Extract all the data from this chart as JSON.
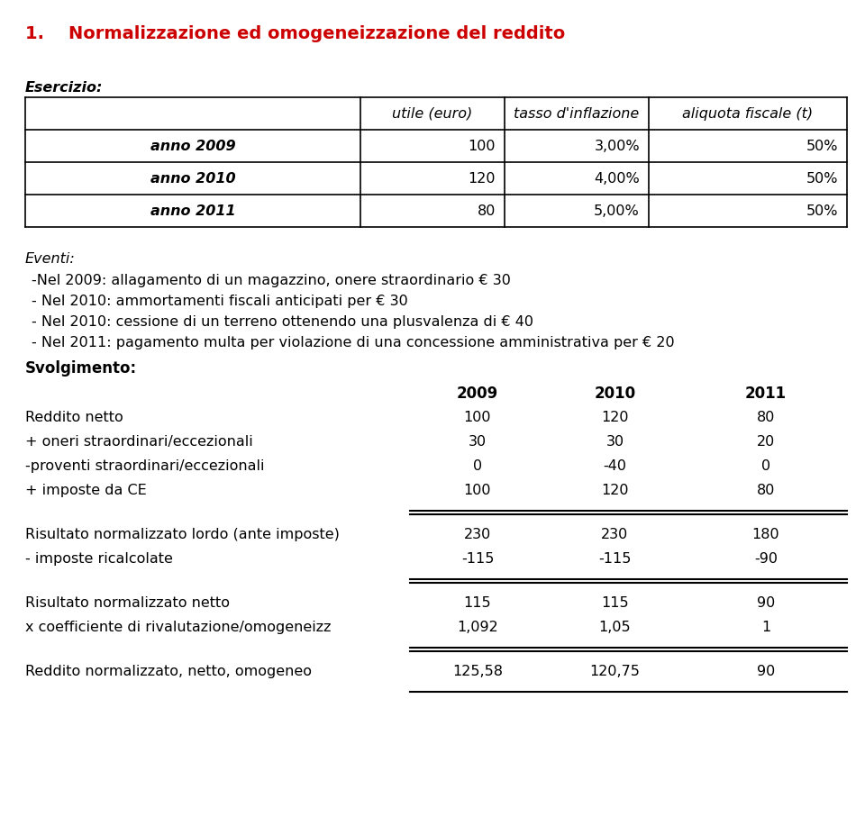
{
  "title": "1.    Normalizzazione ed omogeneizzazione del reddito",
  "title_color": "#cc0000",
  "title_fontsize": 14,
  "esercizio_label": "Esercizio:",
  "table1_headers": [
    "",
    "utile (euro)",
    "tasso d'inflazione",
    "aliquota fiscale (t)"
  ],
  "table1_rows": [
    [
      "anno 2009",
      "100",
      "3,00%",
      "50%"
    ],
    [
      "anno 2010",
      "120",
      "4,00%",
      "50%"
    ],
    [
      "anno 2011",
      "80",
      "5,00%",
      "50%"
    ]
  ],
  "eventi_label": "Eventi:",
  "eventi_lines": [
    "-Nel 2009: allagamento di un magazzino, onere straordinario € 30",
    "- Nel 2010: ammortamenti fiscali anticipati per € 30",
    "- Nel 2010: cessione di un terreno ottenendo una plusvalenza di € 40",
    "- Nel 2011: pagamento multa per violazione di una concessione amministrativa per € 20"
  ],
  "svolgimento_label": "Svolgimento:",
  "table2_years": [
    "2009",
    "2010",
    "2011"
  ],
  "table2_section1": [
    [
      "Reddito netto",
      "100",
      "120",
      "80"
    ],
    [
      "+ oneri straordinari/eccezionali",
      "30",
      "30",
      "20"
    ],
    [
      "-proventi straordinari/eccezionali",
      "0",
      "-40",
      "0"
    ],
    [
      "+ imposte da CE",
      "100",
      "120",
      "80"
    ]
  ],
  "table2_section2": [
    [
      "Risultato normalizzato lordo (ante imposte)",
      "230",
      "230",
      "180"
    ],
    [
      "- imposte ricalcolate",
      "-115",
      "-115",
      "-90"
    ]
  ],
  "table2_section3": [
    [
      "Risultato normalizzato netto",
      "115",
      "115",
      "90"
    ],
    [
      "x coefficiente di rivalutazione/omogeneizz",
      "1,092",
      "1,05",
      "1"
    ]
  ],
  "table2_section4": [
    [
      "Reddito normalizzato, netto, omogeneo",
      "125,58",
      "120,75",
      "90"
    ]
  ],
  "bg_color": "#ffffff",
  "text_color": "#000000",
  "line_color": "#000000",
  "body_fontsize": 11.5
}
